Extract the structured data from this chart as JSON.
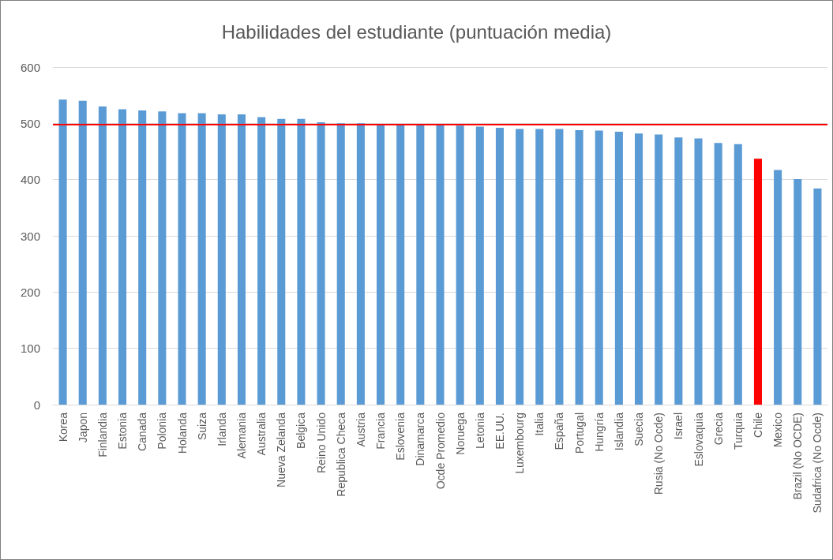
{
  "chart_data": {
    "type": "bar",
    "title": "Habilidades del estudiante (puntuación media)",
    "categories": [
      "Korea",
      "Japon",
      "Finlandia",
      "Estonia",
      "Canada",
      "Polonia",
      "Holanda",
      "Suiza",
      "Irlanda",
      "Alemania",
      "Australia",
      "Nueva Zelanda",
      "Belgica",
      "Reino Unido",
      "Republica Checa",
      "Austria",
      "Francia",
      "Eslovenia",
      "Dinamarca",
      "Ocde Promedio",
      "Noruega",
      "Letonia",
      "EE.UU.",
      "Luxembourg",
      "Italia",
      "España",
      "Portugal",
      "Hungría",
      "Islandia",
      "Suecia",
      "Rusia (No Ocde)",
      "Israel",
      "Eslovaquia",
      "Grecia",
      "Turquia",
      "Chile",
      "Mexico",
      "Brazil (No OCDE)",
      "Sudafrica (No Ocde)"
    ],
    "values": [
      542,
      540,
      530,
      525,
      523,
      521,
      518,
      518,
      516,
      516,
      511,
      508,
      508,
      502,
      500,
      500,
      499,
      498,
      498,
      497,
      496,
      494,
      492,
      490,
      490,
      490,
      488,
      487,
      485,
      482,
      480,
      475,
      473,
      465,
      463,
      437,
      417,
      401,
      384
    ],
    "colors": [
      "#5b9bd5",
      "#5b9bd5",
      "#5b9bd5",
      "#5b9bd5",
      "#5b9bd5",
      "#5b9bd5",
      "#5b9bd5",
      "#5b9bd5",
      "#5b9bd5",
      "#5b9bd5",
      "#5b9bd5",
      "#5b9bd5",
      "#5b9bd5",
      "#5b9bd5",
      "#5b9bd5",
      "#5b9bd5",
      "#5b9bd5",
      "#5b9bd5",
      "#5b9bd5",
      "#5b9bd5",
      "#5b9bd5",
      "#5b9bd5",
      "#5b9bd5",
      "#5b9bd5",
      "#5b9bd5",
      "#5b9bd5",
      "#5b9bd5",
      "#5b9bd5",
      "#5b9bd5",
      "#5b9bd5",
      "#5b9bd5",
      "#5b9bd5",
      "#5b9bd5",
      "#5b9bd5",
      "#5b9bd5",
      "#ff0000",
      "#5b9bd5",
      "#5b9bd5",
      "#5b9bd5"
    ],
    "ylim": [
      0,
      600
    ],
    "yticks": [
      0,
      100,
      200,
      300,
      400,
      500,
      600
    ],
    "grid": "y",
    "ref_lines": [
      {
        "axis": "y",
        "value": 498,
        "color": "#ff0000"
      }
    ]
  }
}
